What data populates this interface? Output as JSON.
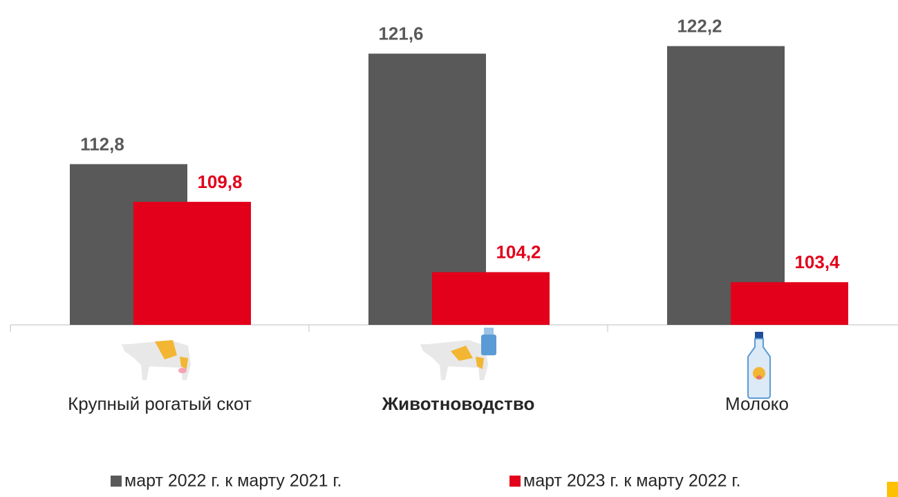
{
  "chart_data": {
    "type": "bar",
    "categories": [
      "Крупный рогатый скот",
      "Животноводство",
      "Молоко"
    ],
    "series": [
      {
        "name": "март 2022 г. к марту 2021 г.",
        "color": "#595959",
        "values": [
          112.8,
          121.6,
          122.2
        ],
        "value_labels": [
          "112,8",
          "121,6",
          "122,2"
        ]
      },
      {
        "name": "март 2023 г. к марту 2022 г.",
        "color": "#e2001a",
        "values": [
          109.8,
          104.2,
          103.4
        ],
        "value_labels": [
          "109,8",
          "104,2",
          "103,4"
        ]
      }
    ],
    "ylim": [
      100,
      124
    ],
    "legend": "bottom"
  }
}
